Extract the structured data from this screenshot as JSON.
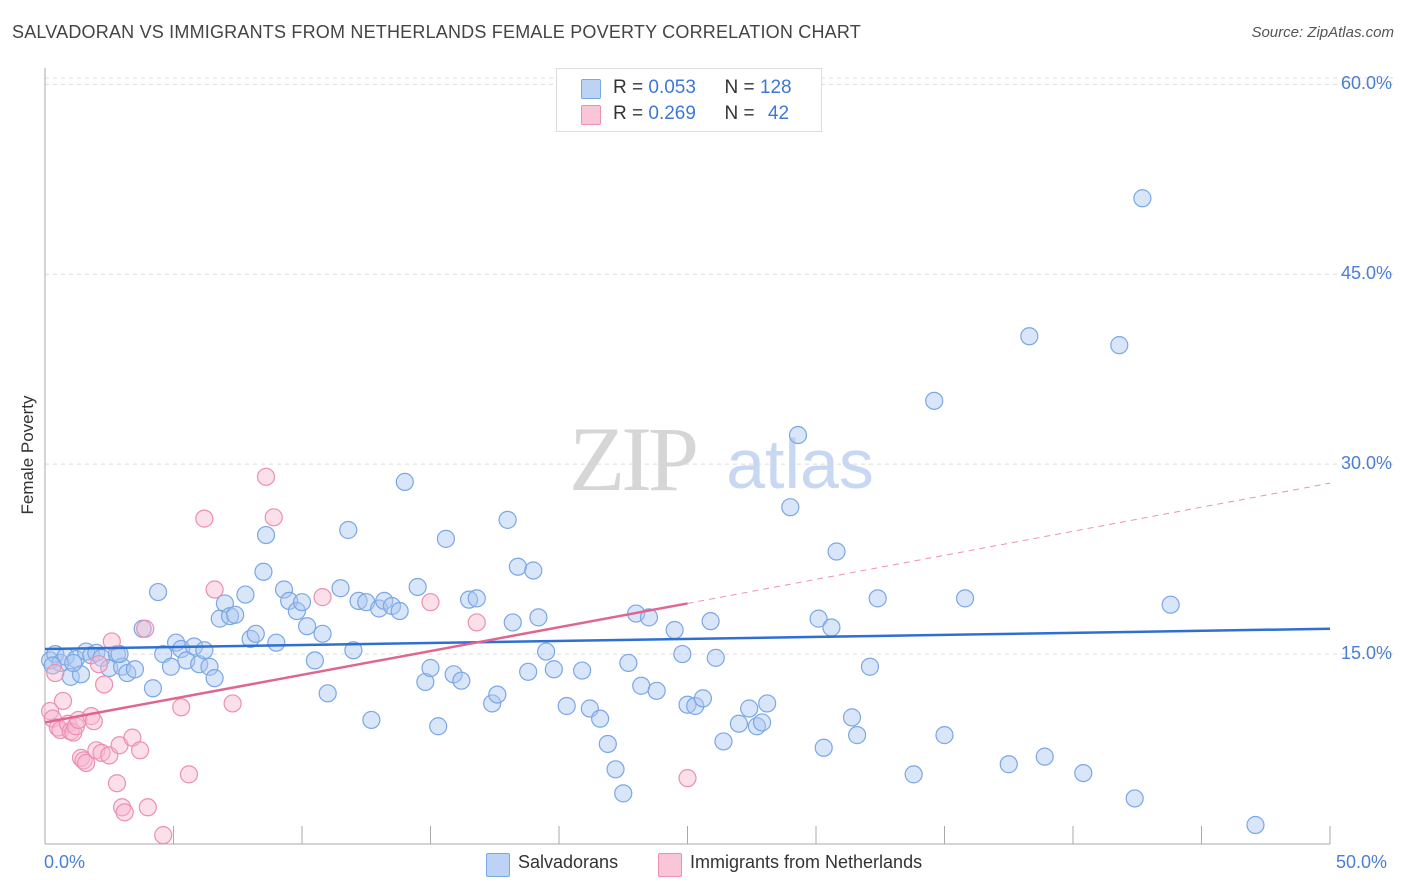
{
  "chart_data": {
    "type": "scatter",
    "title": "SALVADORAN VS IMMIGRANTS FROM NETHERLANDS FEMALE POVERTY CORRELATION CHART",
    "source": "Source: ZipAtlas.com",
    "ylabel": "Female Poverty",
    "xlim": [
      0,
      50
    ],
    "ylim": [
      0,
      60
    ],
    "y_ticks": [
      {
        "value": 15,
        "label": "15.0%"
      },
      {
        "value": 30,
        "label": "30.0%"
      },
      {
        "value": 45,
        "label": "45.0%"
      },
      {
        "value": 60,
        "label": "60.0%"
      }
    ],
    "x_tick_labels": {
      "min": "0.0%",
      "max": "50.0%"
    },
    "watermark": {
      "zip": "ZIP",
      "atlas": "atlas"
    },
    "legend": {
      "r_label": "R =",
      "n_label": "N =",
      "rows": [
        {
          "r": "0.053",
          "n": "128"
        },
        {
          "r": "0.269",
          "n": "42"
        }
      ]
    },
    "series": [
      {
        "name": "Salvadorans",
        "color": "#7aa7e6",
        "fill": "rgba(170,198,240,0.45)",
        "line_color": "#2f6fd1",
        "trend": {
          "x0": 0,
          "y0": 15.4,
          "x1": 50,
          "y1": 17.0
        },
        "points": [
          [
            0.2,
            14.5
          ],
          [
            0.4,
            15.0
          ],
          [
            0.6,
            14.3
          ],
          [
            0.8,
            14.8
          ],
          [
            1.0,
            13.2
          ],
          [
            1.2,
            14.6
          ],
          [
            1.4,
            13.4
          ],
          [
            1.6,
            15.2
          ],
          [
            1.8,
            14.9
          ],
          [
            2.0,
            15.1
          ],
          [
            2.2,
            14.7
          ],
          [
            2.5,
            13.9
          ],
          [
            2.8,
            15.0
          ],
          [
            3.0,
            14.0
          ],
          [
            3.2,
            13.5
          ],
          [
            3.5,
            13.8
          ],
          [
            3.8,
            17.0
          ],
          [
            4.2,
            12.3
          ],
          [
            4.4,
            19.9
          ],
          [
            4.6,
            15.0
          ],
          [
            4.9,
            14.0
          ],
          [
            5.1,
            15.9
          ],
          [
            5.3,
            15.4
          ],
          [
            5.5,
            14.5
          ],
          [
            5.8,
            15.6
          ],
          [
            6.0,
            14.2
          ],
          [
            6.2,
            15.3
          ],
          [
            6.4,
            14.0
          ],
          [
            6.6,
            13.1
          ],
          [
            6.8,
            17.8
          ],
          [
            7.0,
            19.0
          ],
          [
            7.2,
            18.0
          ],
          [
            7.4,
            18.1
          ],
          [
            7.8,
            19.7
          ],
          [
            8.0,
            16.2
          ],
          [
            8.2,
            16.6
          ],
          [
            8.5,
            21.5
          ],
          [
            8.6,
            24.4
          ],
          [
            9.0,
            15.9
          ],
          [
            9.3,
            20.1
          ],
          [
            9.5,
            19.2
          ],
          [
            9.8,
            18.4
          ],
          [
            10.0,
            19.1
          ],
          [
            10.2,
            17.2
          ],
          [
            10.5,
            14.5
          ],
          [
            10.8,
            16.6
          ],
          [
            11.0,
            11.9
          ],
          [
            11.5,
            20.2
          ],
          [
            11.8,
            24.8
          ],
          [
            12.0,
            15.3
          ],
          [
            12.2,
            19.2
          ],
          [
            12.5,
            19.1
          ],
          [
            12.7,
            9.8
          ],
          [
            13.0,
            18.6
          ],
          [
            13.2,
            19.2
          ],
          [
            13.5,
            18.8
          ],
          [
            13.8,
            18.4
          ],
          [
            14.0,
            28.6
          ],
          [
            14.5,
            20.3
          ],
          [
            14.8,
            12.8
          ],
          [
            15.0,
            13.9
          ],
          [
            15.3,
            9.3
          ],
          [
            15.6,
            24.1
          ],
          [
            15.9,
            13.4
          ],
          [
            16.2,
            12.9
          ],
          [
            16.5,
            19.3
          ],
          [
            16.8,
            19.4
          ],
          [
            17.4,
            11.1
          ],
          [
            17.6,
            11.8
          ],
          [
            18.0,
            25.6
          ],
          [
            18.2,
            17.5
          ],
          [
            18.4,
            21.9
          ],
          [
            18.8,
            13.6
          ],
          [
            19.0,
            21.6
          ],
          [
            19.2,
            17.9
          ],
          [
            19.5,
            15.2
          ],
          [
            19.8,
            13.8
          ],
          [
            20.3,
            10.9
          ],
          [
            20.9,
            13.7
          ],
          [
            21.2,
            10.7
          ],
          [
            21.6,
            9.9
          ],
          [
            21.9,
            7.9
          ],
          [
            22.2,
            5.9
          ],
          [
            22.5,
            4.0
          ],
          [
            22.7,
            14.3
          ],
          [
            23.0,
            18.2
          ],
          [
            23.2,
            12.5
          ],
          [
            23.5,
            17.9
          ],
          [
            23.8,
            12.1
          ],
          [
            24.5,
            16.9
          ],
          [
            24.8,
            15.0
          ],
          [
            25.0,
            11.0
          ],
          [
            25.3,
            10.9
          ],
          [
            25.6,
            11.5
          ],
          [
            25.9,
            17.6
          ],
          [
            26.1,
            14.7
          ],
          [
            26.4,
            8.1
          ],
          [
            27.0,
            9.5
          ],
          [
            27.4,
            10.7
          ],
          [
            27.7,
            9.3
          ],
          [
            27.9,
            9.6
          ],
          [
            28.1,
            11.1
          ],
          [
            29.0,
            26.6
          ],
          [
            29.3,
            32.3
          ],
          [
            30.1,
            17.8
          ],
          [
            30.3,
            7.6
          ],
          [
            30.6,
            17.1
          ],
          [
            30.8,
            23.1
          ],
          [
            31.4,
            10.0
          ],
          [
            31.6,
            8.6
          ],
          [
            32.1,
            14.0
          ],
          [
            32.4,
            19.4
          ],
          [
            33.8,
            5.5
          ],
          [
            34.6,
            35.0
          ],
          [
            35.0,
            8.6
          ],
          [
            35.8,
            19.4
          ],
          [
            37.5,
            6.3
          ],
          [
            38.3,
            40.1
          ],
          [
            38.9,
            6.9
          ],
          [
            40.4,
            5.6
          ],
          [
            41.8,
            39.4
          ],
          [
            42.4,
            3.6
          ],
          [
            42.7,
            51.0
          ],
          [
            43.8,
            18.9
          ],
          [
            47.1,
            1.5
          ],
          [
            0.3,
            14.1
          ],
          [
            1.1,
            14.3
          ],
          [
            2.9,
            15.0
          ]
        ]
      },
      {
        "name": "Immigrants from Netherlands",
        "color": "#ec8fb0",
        "fill": "rgba(246,185,206,0.45)",
        "line_color": "#e06690",
        "trend": {
          "x0": 0,
          "y0": 9.6,
          "x1": 25,
          "y1": 19.0
        },
        "trend_ext": {
          "x0": 25,
          "y0": 19.0,
          "x1": 50,
          "y1": 28.5
        },
        "points": [
          [
            0.2,
            10.5
          ],
          [
            0.3,
            9.9
          ],
          [
            0.4,
            13.5
          ],
          [
            0.5,
            9.2
          ],
          [
            0.6,
            9.0
          ],
          [
            0.7,
            11.3
          ],
          [
            0.9,
            9.5
          ],
          [
            1.0,
            8.9
          ],
          [
            1.1,
            8.8
          ],
          [
            1.2,
            9.3
          ],
          [
            1.3,
            9.8
          ],
          [
            1.4,
            6.8
          ],
          [
            1.5,
            6.6
          ],
          [
            1.6,
            6.4
          ],
          [
            1.8,
            10.1
          ],
          [
            1.9,
            9.7
          ],
          [
            2.0,
            7.4
          ],
          [
            2.1,
            14.2
          ],
          [
            2.2,
            7.2
          ],
          [
            2.3,
            12.6
          ],
          [
            2.5,
            7.0
          ],
          [
            2.6,
            16.0
          ],
          [
            2.8,
            4.8
          ],
          [
            2.9,
            7.8
          ],
          [
            3.0,
            2.9
          ],
          [
            3.1,
            2.5
          ],
          [
            3.4,
            8.4
          ],
          [
            3.7,
            7.4
          ],
          [
            3.9,
            17.0
          ],
          [
            4.0,
            2.9
          ],
          [
            4.6,
            0.7
          ],
          [
            5.3,
            10.8
          ],
          [
            5.6,
            5.5
          ],
          [
            6.2,
            25.7
          ],
          [
            6.6,
            20.1
          ],
          [
            7.3,
            11.1
          ],
          [
            8.6,
            29.0
          ],
          [
            8.9,
            25.8
          ],
          [
            10.8,
            19.5
          ],
          [
            15.0,
            19.1
          ],
          [
            16.8,
            17.5
          ],
          [
            25.0,
            5.2
          ]
        ]
      }
    ]
  }
}
